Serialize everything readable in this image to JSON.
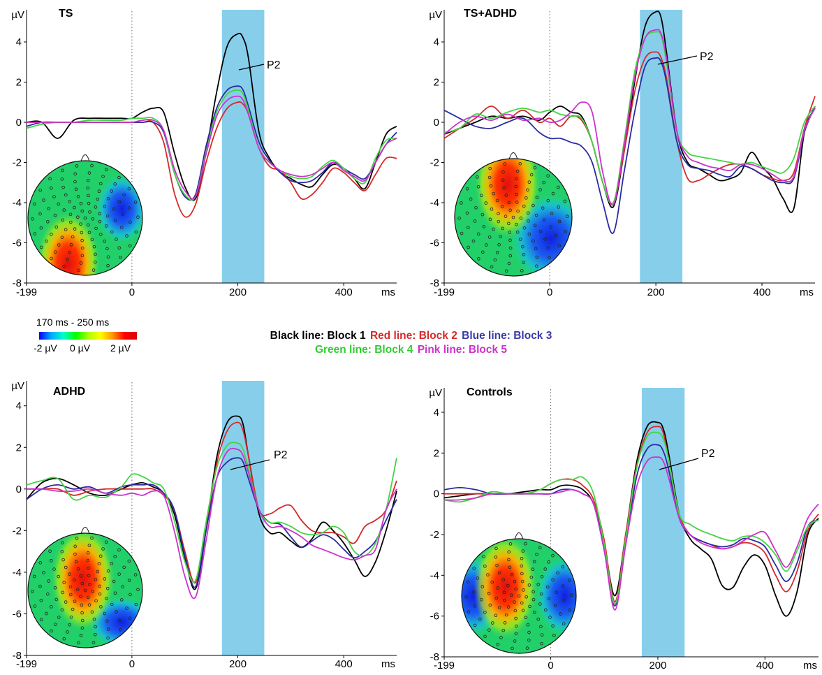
{
  "figure": {
    "colorbar": {
      "title": "170 ms - 250 ms",
      "labels": [
        "-2 µV",
        "0 µV",
        "2 µV"
      ]
    },
    "legend": {
      "line1": [
        {
          "text": "Black line: Block 1",
          "color": "#000000"
        },
        {
          "text": "Red line: Block 2",
          "color": "#d42a2a"
        },
        {
          "text": "Blue line: Block 3",
          "color": "#3a3aa8"
        }
      ],
      "line2": [
        {
          "text": "Green line: Block 4",
          "color": "#33cc33"
        },
        {
          "text": "Pink line: Block 5",
          "color": "#cc33cc"
        }
      ]
    },
    "colors": {
      "Block 1": "#000000",
      "Block 2": "#d42a2a",
      "Block 3": "#2b2ba0",
      "Block 4": "#44d444",
      "Block 5": "#cc33cc",
      "highlight": "#87ceeb"
    }
  },
  "chart_data": [
    {
      "type": "line",
      "title": "TS",
      "ylabel": "µV",
      "xlabel": "ms",
      "xlim": [
        -199,
        500
      ],
      "ylim": [
        -8,
        5.6
      ],
      "xticks": [
        -199,
        0,
        200,
        400
      ],
      "yticks": [
        -8,
        -6,
        -4,
        -2,
        0,
        2,
        4
      ],
      "highlight": [
        170,
        250
      ],
      "annotation": "P2",
      "x": [
        -199,
        -170,
        -140,
        -110,
        -80,
        -50,
        -20,
        0,
        20,
        40,
        60,
        80,
        100,
        120,
        140,
        160,
        180,
        200,
        210,
        220,
        240,
        260,
        280,
        300,
        320,
        340,
        360,
        380,
        400,
        420,
        440,
        460,
        480,
        500
      ],
      "series": [
        {
          "name": "Block 1",
          "values": [
            0,
            0,
            -0.8,
            0.1,
            0.2,
            0.2,
            0.2,
            0.2,
            0.5,
            0.7,
            0.5,
            -1.5,
            -3.2,
            -3.8,
            -1.5,
            1.5,
            3.8,
            4.4,
            4.2,
            3.2,
            -0.5,
            -1.8,
            -2.5,
            -2.8,
            -3.1,
            -3.2,
            -2.6,
            -2.1,
            -2.3,
            -2.8,
            -3.3,
            -2.0,
            -0.6,
            -0.2
          ]
        },
        {
          "name": "Block 2",
          "values": [
            0,
            0,
            0,
            0,
            0,
            0,
            0,
            0,
            0,
            0,
            -1.0,
            -3.5,
            -4.7,
            -4.1,
            -2.0,
            -0.3,
            0.7,
            1.0,
            0.9,
            0.4,
            -1.3,
            -2.2,
            -2.4,
            -3.0,
            -3.8,
            -3.6,
            -3.0,
            -2.3,
            -2.5,
            -3.0,
            -3.4,
            -2.6,
            -1.8,
            -1.8
          ]
        },
        {
          "name": "Block 3",
          "values": [
            -0.2,
            0,
            0,
            0,
            0,
            0,
            0,
            0,
            0,
            0,
            -0.5,
            -2.5,
            -3.7,
            -3.6,
            -1.2,
            0.7,
            1.6,
            1.8,
            1.6,
            0.8,
            -1.0,
            -1.9,
            -2.5,
            -2.9,
            -3.0,
            -2.9,
            -2.5,
            -2.0,
            -2.3,
            -2.6,
            -2.8,
            -2.0,
            -1.1,
            -0.5
          ]
        },
        {
          "name": "Block 4",
          "values": [
            -0.3,
            -0.1,
            0,
            0,
            0.1,
            0.1,
            0.1,
            0.2,
            0.2,
            0.2,
            -0.4,
            -2.5,
            -3.6,
            -3.7,
            -1.5,
            0.5,
            1.4,
            1.6,
            1.4,
            0.6,
            -1.3,
            -2.0,
            -2.4,
            -2.7,
            -2.8,
            -2.7,
            -2.2,
            -1.9,
            -2.3,
            -2.8,
            -3.0,
            -1.8,
            -0.9,
            -0.8
          ]
        },
        {
          "name": "Block 5",
          "values": [
            0,
            0,
            0,
            0,
            0,
            0,
            0,
            0,
            0.1,
            0.1,
            -0.4,
            -2.3,
            -3.4,
            -3.7,
            -1.6,
            0.3,
            1.1,
            1.3,
            1.1,
            0.4,
            -1.3,
            -2.0,
            -2.4,
            -2.6,
            -2.7,
            -2.6,
            -2.3,
            -2.0,
            -2.4,
            -2.7,
            -2.9,
            -2.0,
            -1.1,
            -0.8
          ]
        }
      ]
    },
    {
      "type": "line",
      "title": "TS+ADHD",
      "ylabel": "µV",
      "xlabel": "ms",
      "xlim": [
        -199,
        500
      ],
      "ylim": [
        -8,
        5.6
      ],
      "xticks": [
        -199,
        0,
        200,
        400
      ],
      "yticks": [
        -8,
        -6,
        -4,
        -2,
        0,
        2,
        4
      ],
      "highlight": [
        170,
        250
      ],
      "annotation": "P2",
      "x": [
        -199,
        -170,
        -140,
        -110,
        -80,
        -50,
        -20,
        0,
        20,
        40,
        60,
        80,
        100,
        120,
        140,
        160,
        180,
        200,
        210,
        220,
        240,
        260,
        280,
        300,
        320,
        340,
        360,
        380,
        400,
        420,
        440,
        460,
        480,
        500
      ],
      "series": [
        {
          "name": "Block 1",
          "values": [
            -0.6,
            -0.3,
            0,
            0.3,
            0.2,
            0.3,
            0.1,
            0.5,
            0.8,
            0.5,
            0.3,
            -1.0,
            -3.0,
            -4.2,
            -1.5,
            2.0,
            4.8,
            5.5,
            5.2,
            3.5,
            -0.5,
            -2.0,
            -2.3,
            -2.6,
            -2.9,
            -2.8,
            -2.5,
            -1.5,
            -2.2,
            -2.8,
            -3.8,
            -4.3,
            -0.5,
            0.7
          ]
        },
        {
          "name": "Block 2",
          "values": [
            -0.8,
            -0.3,
            0.2,
            0.8,
            0.2,
            0.6,
            0,
            0.2,
            -0.2,
            0.3,
            0.1,
            -1.0,
            -3.0,
            -4.0,
            -1.5,
            1.5,
            3.2,
            3.5,
            3.2,
            2.2,
            -1.0,
            -2.8,
            -2.9,
            -2.6,
            -2.3,
            -2.1,
            -2.1,
            -2.3,
            -2.6,
            -2.8,
            -2.9,
            -2.5,
            -0.3,
            1.3
          ]
        },
        {
          "name": "Block 3",
          "values": [
            0.6,
            0.2,
            -0.2,
            -0.3,
            0,
            0.2,
            -0.5,
            -0.8,
            -0.8,
            -1.0,
            -1.2,
            -2.0,
            -4.0,
            -5.5,
            -2.5,
            0.5,
            2.8,
            3.2,
            3.0,
            2.0,
            -1.0,
            -2.1,
            -2.3,
            -2.4,
            -2.6,
            -2.7,
            -2.2,
            -2.3,
            -2.6,
            -2.9,
            -3.0,
            -2.8,
            -0.5,
            0.8
          ]
        },
        {
          "name": "Block 4",
          "values": [
            -0.5,
            -0.3,
            0.4,
            0.2,
            0.5,
            0.7,
            0.5,
            0.6,
            0.4,
            0.3,
            0.2,
            -1.0,
            -3.0,
            -4.0,
            -1.0,
            2.5,
            4.2,
            4.5,
            4.3,
            3.0,
            -0.5,
            -1.5,
            -1.7,
            -1.8,
            -1.9,
            -2.0,
            -2.1,
            -2.0,
            -2.2,
            -2.4,
            -2.5,
            -1.8,
            0,
            0.8
          ]
        },
        {
          "name": "Block 5",
          "values": [
            -0.6,
            0,
            0.3,
            0.1,
            0.4,
            0.1,
            0.2,
            0,
            0.1,
            0.5,
            1.0,
            0.5,
            -2.5,
            -4.1,
            -1.2,
            2.2,
            4.2,
            4.6,
            4.4,
            3.2,
            -0.5,
            -1.7,
            -2.0,
            -2.2,
            -2.3,
            -2.4,
            -2.1,
            -2.1,
            -2.3,
            -2.6,
            -2.9,
            -2.7,
            -0.4,
            0.7
          ]
        }
      ]
    },
    {
      "type": "line",
      "title": "ADHD",
      "ylabel": "µV",
      "xlabel": "ms",
      "xlim": [
        -199,
        500
      ],
      "ylim": [
        -8,
        5.2
      ],
      "xticks": [
        -199,
        0,
        200,
        400
      ],
      "yticks": [
        -8,
        -6,
        -4,
        -2,
        0,
        2,
        4
      ],
      "highlight": [
        170,
        250
      ],
      "annotation": "P2",
      "x": [
        -199,
        -170,
        -140,
        -110,
        -80,
        -50,
        -20,
        0,
        20,
        40,
        60,
        80,
        100,
        120,
        140,
        160,
        180,
        200,
        210,
        220,
        240,
        260,
        280,
        300,
        320,
        340,
        360,
        380,
        400,
        420,
        440,
        460,
        480,
        500
      ],
      "series": [
        {
          "name": "Block 1",
          "values": [
            -0.5,
            0.3,
            0.5,
            0.2,
            -0.2,
            -0.3,
            0,
            0.2,
            0.3,
            0.1,
            -0.2,
            -1.2,
            -3.3,
            -4.8,
            -2.0,
            1.5,
            3.2,
            3.5,
            3.1,
            1.6,
            -1.2,
            -2.1,
            -2.1,
            -2.5,
            -2.8,
            -2.4,
            -1.6,
            -2.0,
            -2.6,
            -3.4,
            -4.2,
            -3.5,
            -2.0,
            -0.1
          ]
        },
        {
          "name": "Block 2",
          "values": [
            0,
            0,
            0,
            -0.3,
            -0.1,
            0,
            0,
            0,
            0,
            0,
            -0.3,
            -1.0,
            -3.0,
            -4.5,
            -2.0,
            1.2,
            2.8,
            3.2,
            2.8,
            1.6,
            -1.0,
            -1.2,
            -0.9,
            -0.8,
            -1.5,
            -2.0,
            -2.1,
            -2.1,
            -2.3,
            -2.6,
            -1.8,
            -1.5,
            -1.0,
            0.4
          ]
        },
        {
          "name": "Block 3",
          "values": [
            -0.5,
            0,
            0.2,
            0,
            0.1,
            -0.2,
            0.1,
            0.2,
            0.2,
            0.2,
            -0.2,
            -1.0,
            -3.2,
            -4.7,
            -2.0,
            0.5,
            1.3,
            1.5,
            1.3,
            0.5,
            -1.0,
            -1.6,
            -1.7,
            -2.3,
            -2.8,
            -2.5,
            -2.2,
            -2.4,
            -2.9,
            -3.3,
            -3.0,
            -2.5,
            -1.5,
            -0.5
          ]
        },
        {
          "name": "Block 4",
          "values": [
            0.2,
            0.4,
            0.5,
            -0.5,
            -0.3,
            -0.4,
            0.1,
            0.7,
            0.6,
            0.3,
            0,
            -1.5,
            -3.5,
            -4.4,
            -1.6,
            1.0,
            2.1,
            2.2,
            1.9,
            1.0,
            -1.0,
            -1.6,
            -1.6,
            -1.8,
            -2.1,
            -2.2,
            -2.1,
            -1.8,
            -2.1,
            -3.0,
            -3.2,
            -2.6,
            -1.0,
            1.5
          ]
        },
        {
          "name": "Block 5",
          "values": [
            0,
            0,
            -0.1,
            -0.1,
            0,
            -0.2,
            -0.3,
            -0.2,
            -0.3,
            -0.1,
            -0.3,
            -2.0,
            -4.2,
            -5.2,
            -2.5,
            0.5,
            1.8,
            1.9,
            1.6,
            0.8,
            -1.0,
            -1.8,
            -1.8,
            -2.0,
            -2.3,
            -2.7,
            -2.9,
            -3.1,
            -3.3,
            -3.4,
            -3.2,
            -2.9,
            -1.0,
            0
          ]
        }
      ]
    },
    {
      "type": "line",
      "title": "Controls",
      "ylabel": "µV",
      "xlabel": "ms",
      "xlim": [
        -199,
        500
      ],
      "ylim": [
        -8,
        5.2
      ],
      "xticks": [
        -199,
        0,
        200,
        400
      ],
      "yticks": [
        -8,
        -6,
        -4,
        -2,
        0,
        2,
        4
      ],
      "highlight": [
        170,
        250
      ],
      "annotation": "P2",
      "x": [
        -199,
        -170,
        -140,
        -110,
        -80,
        -50,
        -20,
        0,
        20,
        40,
        60,
        80,
        100,
        120,
        140,
        160,
        180,
        200,
        210,
        220,
        240,
        260,
        280,
        300,
        320,
        340,
        360,
        380,
        400,
        420,
        440,
        460,
        480,
        500
      ],
      "series": [
        {
          "name": "Block 1",
          "values": [
            -0.2,
            -0.1,
            0,
            0,
            0,
            0.1,
            0.2,
            0.2,
            0.4,
            0.4,
            0.2,
            -0.5,
            -2.5,
            -5.0,
            -2.0,
            1.5,
            3.3,
            3.5,
            3.2,
            2.0,
            -1.0,
            -2.2,
            -2.7,
            -3.2,
            -4.5,
            -4.6,
            -3.6,
            -3.0,
            -3.5,
            -5.0,
            -6.0,
            -4.8,
            -2.0,
            -1.2
          ]
        },
        {
          "name": "Block 2",
          "values": [
            0,
            0,
            0,
            0,
            0,
            0,
            0.2,
            0.5,
            0.7,
            0.7,
            0.4,
            -0.3,
            -2.3,
            -5.3,
            -2.0,
            1.3,
            3.0,
            3.3,
            3.0,
            1.7,
            -1.0,
            -2.0,
            -2.3,
            -2.5,
            -2.7,
            -2.6,
            -2.4,
            -2.5,
            -2.9,
            -4.0,
            -4.8,
            -3.8,
            -1.8,
            -1.0
          ]
        },
        {
          "name": "Block 3",
          "values": [
            0.2,
            0.3,
            0.2,
            0,
            0,
            0,
            0,
            0,
            0.2,
            0.2,
            0,
            -0.5,
            -2.8,
            -5.5,
            -2.5,
            0.8,
            2.2,
            2.4,
            2.1,
            1.2,
            -1.2,
            -2.0,
            -2.3,
            -2.5,
            -2.6,
            -2.5,
            -2.2,
            -2.3,
            -2.6,
            -3.5,
            -4.3,
            -3.4,
            -1.6,
            -1.3
          ]
        },
        {
          "name": "Block 4",
          "values": [
            -0.3,
            -0.4,
            -0.2,
            0.1,
            0,
            0,
            0.2,
            0.5,
            0.7,
            0.7,
            0.8,
            0,
            -2.5,
            -5.4,
            -2.2,
            1.2,
            2.8,
            3.0,
            2.7,
            1.7,
            -1.0,
            -1.5,
            -1.8,
            -2.0,
            -2.2,
            -2.3,
            -2.1,
            -2.1,
            -2.4,
            -3.0,
            -3.8,
            -2.8,
            -1.6,
            -1.3
          ]
        },
        {
          "name": "Block 5",
          "values": [
            -0.3,
            -0.3,
            -0.2,
            0,
            0,
            0,
            0,
            0,
            0.1,
            0.2,
            0,
            -0.5,
            -2.8,
            -5.7,
            -2.5,
            0.3,
            1.6,
            1.8,
            1.6,
            0.8,
            -1.2,
            -2.0,
            -2.4,
            -2.6,
            -2.7,
            -2.6,
            -2.3,
            -2.0,
            -1.9,
            -2.8,
            -3.6,
            -2.6,
            -1.2,
            -0.5
          ]
        }
      ]
    }
  ]
}
